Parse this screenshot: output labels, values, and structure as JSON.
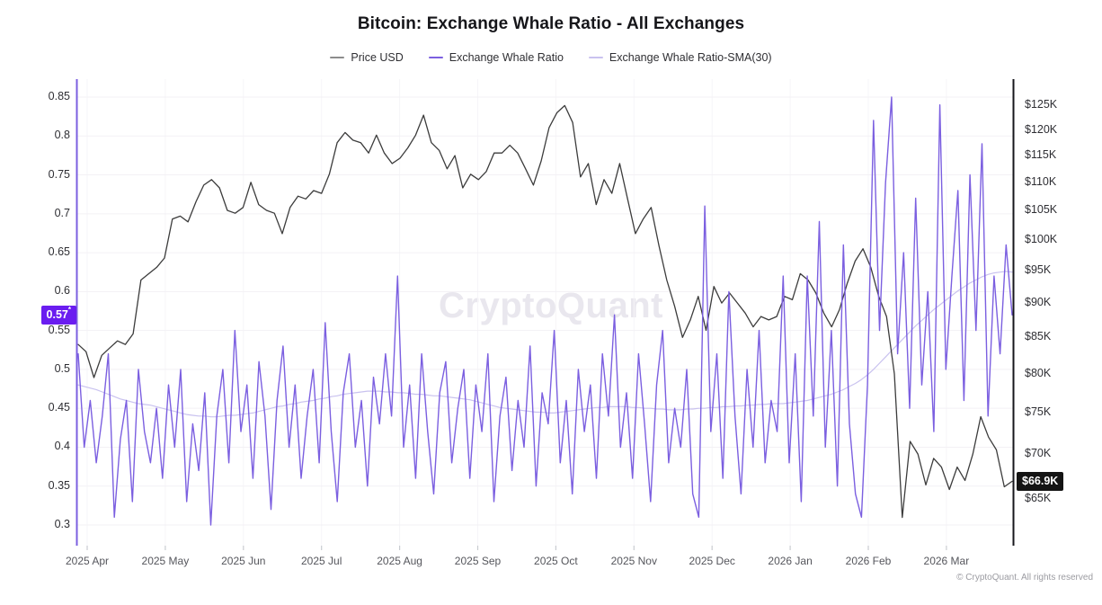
{
  "header": {
    "title": "Bitcoin: Exchange Whale Ratio - All Exchanges"
  },
  "watermark": {
    "text": "CryptoQuant"
  },
  "footer": {
    "copyright": "© CryptoQuant. All rights reserved"
  },
  "colors": {
    "accent_purple": "#6a1df0",
    "whale_line": "#7b5fe0",
    "sma_line": "#c9c2ef",
    "price_line": "#3c3c3c",
    "price_legend_dash": "#8c8c8c",
    "badge_black": "#141414",
    "grid_line": "#f3f1f5",
    "grid_line_vertical": "#f6f5f8",
    "tick_mark": "#c9ccd1"
  },
  "chart_data": {
    "type": "line",
    "title": "Bitcoin: Exchange Whale Ratio - All Exchanges",
    "legend_position": "top-center",
    "grid": "horizontal major, faint vertical monthly",
    "x_ticks": [
      "2025 Apr",
      "2025 May",
      "2025 Jun",
      "2025 Jul",
      "2025 Aug",
      "2025 Sep",
      "2025 Oct",
      "2025 Nov",
      "2025 Dec",
      "2026 Jan",
      "2026 Feb",
      "2026 Mar"
    ],
    "y_left": {
      "scale": "linear",
      "range": [
        0.3,
        0.85
      ],
      "ticks": [
        0.85,
        0.8,
        0.75,
        0.7,
        0.65,
        0.6,
        0.55,
        0.5,
        0.45,
        0.4,
        0.35,
        0.3
      ],
      "labels": [
        "0.85",
        "0.8",
        "0.75",
        "0.7",
        "0.65",
        "0.6",
        "0.55",
        "0.5",
        "0.45",
        "0.4",
        "0.35",
        "0.3"
      ]
    },
    "y_right": {
      "scale": "log",
      "unit": "USD",
      "range": [
        65,
        125
      ],
      "ticks": [
        125,
        120,
        115,
        110,
        105,
        100,
        95,
        90,
        85,
        80,
        75,
        70,
        65
      ],
      "labels": [
        "$125K",
        "$120K",
        "$115K",
        "$110K",
        "$105K",
        "$100K",
        "$95K",
        "$90K",
        "$85K",
        "$80K",
        "$75K",
        "$70K",
        "$65K"
      ]
    },
    "current": {
      "left_label": "0.57",
      "left_marker": "*",
      "left_value": 0.57,
      "right_label": "$66.9K",
      "right_value": 66.9
    },
    "series": [
      {
        "name": "Price USD",
        "axis": "right",
        "color": "#3c3c3c",
        "legend_dash_color": "#8c8c8c",
        "values": [
          84,
          83,
          79.5,
          82.5,
          83.5,
          84.5,
          84,
          85.5,
          93.5,
          94.5,
          95.5,
          97,
          103.5,
          104,
          103,
          106.5,
          109.5,
          110.5,
          109,
          105,
          104.5,
          105.5,
          110,
          106,
          105,
          104.5,
          101,
          105.5,
          107.5,
          107,
          108.5,
          108,
          111.5,
          117.5,
          119.5,
          118,
          117.5,
          115.5,
          119,
          115.5,
          113.5,
          114.5,
          116.5,
          119,
          123,
          117.5,
          116,
          112.5,
          115,
          109,
          111.5,
          110.5,
          112,
          115.5,
          115.5,
          117,
          115.5,
          112.5,
          109.5,
          114,
          120.5,
          123.5,
          125,
          121.5,
          111,
          113.5,
          106,
          110.5,
          108,
          113.5,
          107,
          101,
          103.5,
          105.5,
          99,
          93.5,
          89.5,
          85,
          87.5,
          91,
          86,
          92.5,
          90,
          91.5,
          90,
          88.5,
          86.5,
          88,
          87.5,
          88,
          91,
          90.5,
          94.5,
          93.5,
          91.5,
          88.5,
          86.5,
          89,
          93,
          96.5,
          98.5,
          95.5,
          91,
          88,
          80,
          63,
          71.5,
          70,
          66.5,
          69.5,
          68.5,
          66,
          68.5,
          67,
          70,
          74.5,
          72,
          70.5,
          66.3,
          66.9
        ]
      },
      {
        "name": "Exchange Whale Ratio",
        "axis": "left",
        "color": "#7b5fe0",
        "legend_dash_color": "#7b5fe0",
        "values": [
          0.52,
          0.4,
          0.46,
          0.38,
          0.44,
          0.52,
          0.31,
          0.41,
          0.46,
          0.33,
          0.5,
          0.42,
          0.38,
          0.45,
          0.36,
          0.48,
          0.4,
          0.5,
          0.33,
          0.43,
          0.37,
          0.47,
          0.3,
          0.44,
          0.5,
          0.38,
          0.55,
          0.42,
          0.48,
          0.36,
          0.51,
          0.44,
          0.32,
          0.46,
          0.53,
          0.4,
          0.48,
          0.36,
          0.44,
          0.5,
          0.38,
          0.56,
          0.42,
          0.33,
          0.47,
          0.52,
          0.4,
          0.46,
          0.35,
          0.49,
          0.43,
          0.52,
          0.44,
          0.62,
          0.4,
          0.48,
          0.36,
          0.52,
          0.42,
          0.34,
          0.47,
          0.51,
          0.38,
          0.45,
          0.5,
          0.36,
          0.48,
          0.42,
          0.52,
          0.33,
          0.44,
          0.49,
          0.37,
          0.46,
          0.4,
          0.53,
          0.35,
          0.47,
          0.43,
          0.55,
          0.38,
          0.46,
          0.34,
          0.5,
          0.42,
          0.48,
          0.36,
          0.52,
          0.44,
          0.57,
          0.4,
          0.47,
          0.36,
          0.52,
          0.43,
          0.33,
          0.48,
          0.55,
          0.38,
          0.45,
          0.4,
          0.5,
          0.34,
          0.31,
          0.71,
          0.42,
          0.52,
          0.36,
          0.6,
          0.44,
          0.34,
          0.5,
          0.4,
          0.55,
          0.38,
          0.46,
          0.42,
          0.62,
          0.38,
          0.52,
          0.33,
          0.62,
          0.44,
          0.69,
          0.4,
          0.55,
          0.35,
          0.66,
          0.43,
          0.34,
          0.31,
          0.48,
          0.82,
          0.55,
          0.74,
          0.85,
          0.52,
          0.65,
          0.45,
          0.72,
          0.48,
          0.6,
          0.42,
          0.84,
          0.5,
          0.62,
          0.73,
          0.46,
          0.75,
          0.55,
          0.79,
          0.44,
          0.62,
          0.52,
          0.66,
          0.57
        ]
      },
      {
        "name": "Exchange Whale Ratio-SMA(30)",
        "axis": "left",
        "color": "#c9c2ef",
        "legend_dash_color": "#c9c2ef",
        "values": [
          0.48,
          0.478,
          0.476,
          0.474,
          0.471,
          0.468,
          0.465,
          0.462,
          0.46,
          0.458,
          0.456,
          0.455,
          0.454,
          0.452,
          0.45,
          0.448,
          0.446,
          0.444,
          0.442,
          0.441,
          0.44,
          0.44,
          0.439,
          0.439,
          0.44,
          0.441,
          0.441,
          0.442,
          0.443,
          0.444,
          0.446,
          0.448,
          0.45,
          0.452,
          0.453,
          0.455,
          0.456,
          0.458,
          0.459,
          0.46,
          0.462,
          0.463,
          0.465,
          0.466,
          0.468,
          0.469,
          0.47,
          0.471,
          0.472,
          0.472,
          0.472,
          0.471,
          0.471,
          0.47,
          0.47,
          0.469,
          0.468,
          0.468,
          0.467,
          0.466,
          0.466,
          0.465,
          0.464,
          0.463,
          0.462,
          0.461,
          0.459,
          0.457,
          0.455,
          0.453,
          0.451,
          0.45,
          0.449,
          0.448,
          0.447,
          0.446,
          0.445,
          0.445,
          0.444,
          0.444,
          0.445,
          0.446,
          0.447,
          0.448,
          0.449,
          0.45,
          0.451,
          0.451,
          0.452,
          0.452,
          0.452,
          0.452,
          0.451,
          0.451,
          0.45,
          0.45,
          0.449,
          0.449,
          0.448,
          0.448,
          0.448,
          0.449,
          0.449,
          0.45,
          0.45,
          0.451,
          0.451,
          0.452,
          0.452,
          0.453,
          0.453,
          0.454,
          0.454,
          0.455,
          0.455,
          0.456,
          0.456,
          0.456,
          0.457,
          0.458,
          0.459,
          0.46,
          0.462,
          0.464,
          0.466,
          0.468,
          0.471,
          0.474,
          0.478,
          0.482,
          0.487,
          0.493,
          0.5,
          0.508,
          0.516,
          0.524,
          0.532,
          0.54,
          0.548,
          0.556,
          0.563,
          0.57,
          0.577,
          0.583,
          0.589,
          0.595,
          0.601,
          0.606,
          0.611,
          0.615,
          0.619,
          0.622,
          0.624,
          0.625,
          0.626,
          0.625
        ]
      }
    ]
  }
}
